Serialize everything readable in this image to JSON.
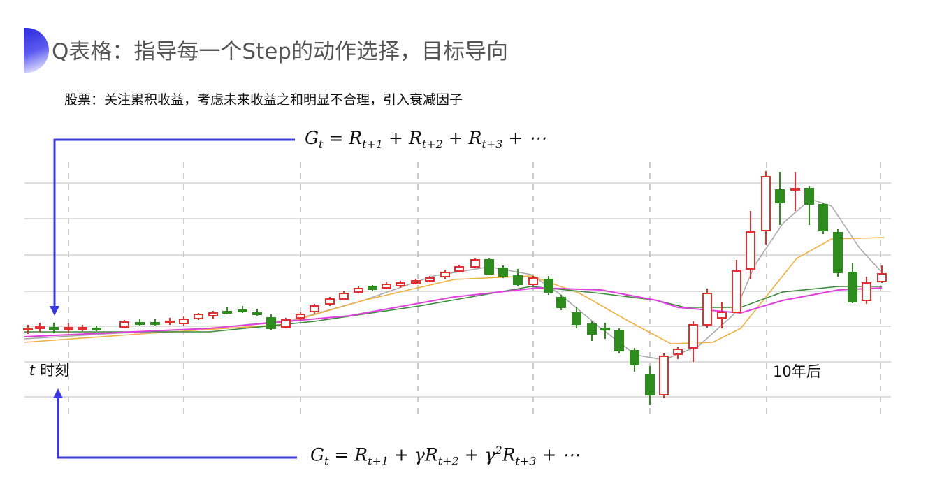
{
  "slide": {
    "title": "Q表格：指导每一个Step的动作选择，目标导向",
    "subtitle": "股票：关注累积收益，考虑未来收益之和明显不合理，引入衰减因子",
    "formula_undiscounted": "G_t = R_{t+1} + R_{t+2} + R_{t+3} + ⋯",
    "formula_discounted": "G_t = R_{t+1} + γR_{t+2} + γ²R_{t+3} + ⋯",
    "time_label_var": "t",
    "time_label_text": "时刻",
    "later_label": "10年后"
  },
  "colors": {
    "accent_blue": "#3a3ae0",
    "candle_up": "#e03030",
    "candle_down": "#2e8b1e",
    "ma_gray": "#aaaaaa",
    "ma_orange": "#f0b040",
    "ma_green": "#3a8a3a",
    "ma_magenta": "#e040e0"
  }
}
